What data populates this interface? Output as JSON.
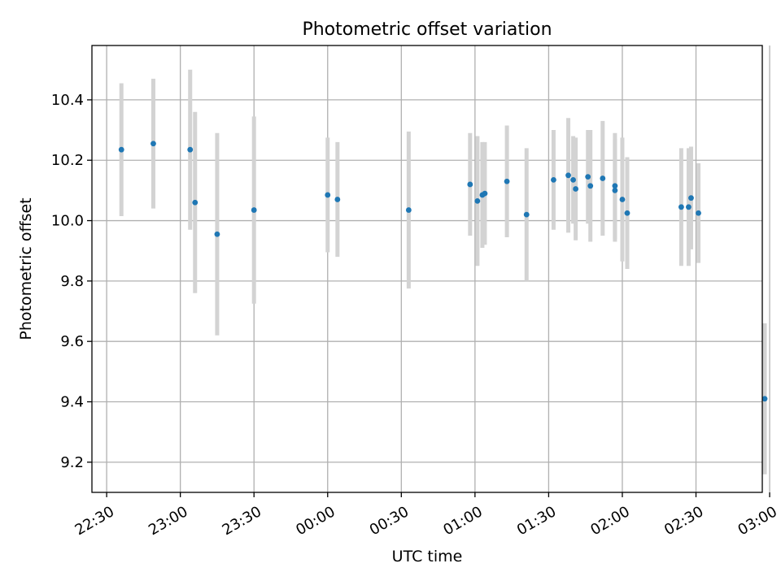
{
  "chart_data": {
    "type": "scatter",
    "title": "Photometric offset variation",
    "xlabel": "UTC time",
    "ylabel": "Photometric offset",
    "xlim": [
      "22:24",
      "02:57"
    ],
    "ylim": [
      9.1,
      10.58
    ],
    "x_ticks": [
      "22:30",
      "23:00",
      "23:30",
      "00:00",
      "00:30",
      "01:00",
      "01:30",
      "02:00",
      "02:30",
      "03:00"
    ],
    "y_ticks": [
      "9.2",
      "9.4",
      "9.6",
      "9.8",
      "10.0",
      "10.2",
      "10.4"
    ],
    "grid": true,
    "colors": {
      "marker": "#1f77b4",
      "errorbar": "#d3d3d3"
    },
    "points": [
      {
        "time": "22:36",
        "y": 10.235,
        "err": 0.22
      },
      {
        "time": "22:49",
        "y": 10.255,
        "err": 0.215
      },
      {
        "time": "23:04",
        "y": 10.235,
        "err": 0.265
      },
      {
        "time": "23:06",
        "y": 10.06,
        "err": 0.3
      },
      {
        "time": "23:15",
        "y": 9.955,
        "err": 0.335
      },
      {
        "time": "23:30",
        "y": 10.035,
        "err": 0.31
      },
      {
        "time": "00:00",
        "y": 10.085,
        "err": 0.19
      },
      {
        "time": "00:04",
        "y": 10.07,
        "err": 0.19
      },
      {
        "time": "00:33",
        "y": 10.035,
        "err": 0.26
      },
      {
        "time": "00:58",
        "y": 10.12,
        "err": 0.17
      },
      {
        "time": "01:01",
        "y": 10.065,
        "err": 0.215
      },
      {
        "time": "01:03",
        "y": 10.085,
        "err": 0.175
      },
      {
        "time": "01:04",
        "y": 10.09,
        "err": 0.17
      },
      {
        "time": "01:13",
        "y": 10.13,
        "err": 0.185
      },
      {
        "time": "01:21",
        "y": 10.02,
        "err": 0.22
      },
      {
        "time": "01:32",
        "y": 10.135,
        "err": 0.165
      },
      {
        "time": "01:38",
        "y": 10.15,
        "err": 0.19
      },
      {
        "time": "01:40",
        "y": 10.135,
        "err": 0.145
      },
      {
        "time": "01:41",
        "y": 10.105,
        "err": 0.17
      },
      {
        "time": "01:46",
        "y": 10.145,
        "err": 0.155
      },
      {
        "time": "01:47",
        "y": 10.115,
        "err": 0.185
      },
      {
        "time": "01:52",
        "y": 10.14,
        "err": 0.19
      },
      {
        "time": "01:57",
        "y": 10.115,
        "err": 0.175
      },
      {
        "time": "01:57",
        "y": 10.1,
        "err": 0.17
      },
      {
        "time": "02:00",
        "y": 10.07,
        "err": 0.205
      },
      {
        "time": "02:02",
        "y": 10.025,
        "err": 0.185
      },
      {
        "time": "02:24",
        "y": 10.045,
        "err": 0.195
      },
      {
        "time": "02:27",
        "y": 10.045,
        "err": 0.195
      },
      {
        "time": "02:28",
        "y": 10.075,
        "err": 0.17
      },
      {
        "time": "02:31",
        "y": 10.025,
        "err": 0.165
      },
      {
        "time": "02:58",
        "y": 9.41,
        "err": 0.25
      }
    ]
  }
}
